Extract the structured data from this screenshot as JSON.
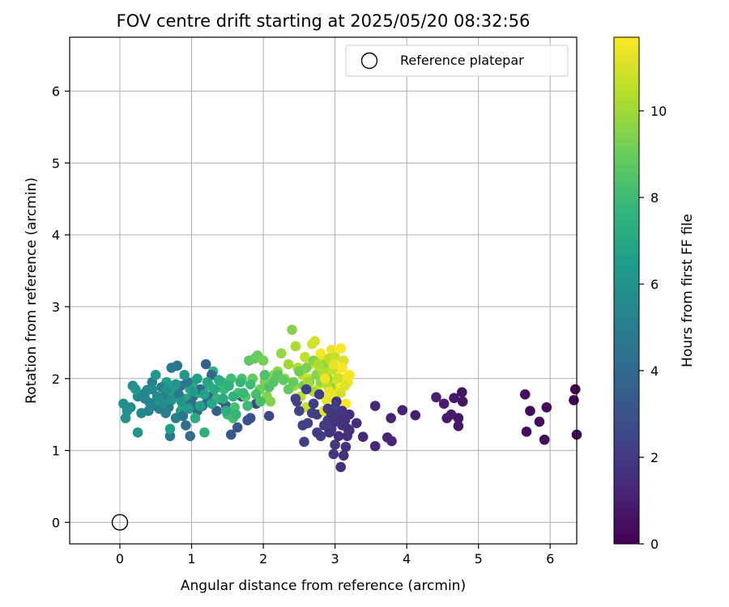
{
  "chart_data": {
    "type": "scatter",
    "title": "FOV centre drift starting at 2025/05/20 08:32:56",
    "xlabel": "Angular distance from reference (arcmin)",
    "ylabel": "Rotation from reference (arcmin)",
    "xlim": [
      -0.7,
      6.37
    ],
    "ylim": [
      -0.3,
      6.75
    ],
    "xticks": [
      0,
      1,
      2,
      3,
      4,
      5,
      6
    ],
    "yticks": [
      0,
      1,
      2,
      3,
      4,
      5,
      6
    ],
    "grid": true,
    "legend": {
      "position": "top-right",
      "entries": [
        "Reference platepar"
      ]
    },
    "reference_point": {
      "x": 0,
      "y": 0,
      "label": "Reference platepar"
    },
    "colorbar": {
      "label": "Hours from first FF file",
      "range": [
        0,
        11.7
      ],
      "ticks": [
        0,
        2,
        4,
        6,
        8,
        10
      ],
      "colormap": "viridis"
    },
    "points": [
      [
        6.35,
        1.85,
        0.0
      ],
      [
        6.33,
        1.7,
        0.05
      ],
      [
        6.37,
        1.22,
        0.1
      ],
      [
        5.95,
        1.6,
        0.2
      ],
      [
        5.92,
        1.15,
        0.25
      ],
      [
        5.85,
        1.4,
        0.3
      ],
      [
        5.72,
        1.55,
        0.35
      ],
      [
        5.67,
        1.26,
        0.4
      ],
      [
        5.65,
        1.78,
        0.45
      ],
      [
        4.77,
        1.81,
        0.6
      ],
      [
        4.78,
        1.68,
        0.65
      ],
      [
        4.72,
        1.45,
        0.7
      ],
      [
        4.72,
        1.34,
        0.75
      ],
      [
        4.66,
        1.73,
        0.8
      ],
      [
        4.62,
        1.5,
        0.85
      ],
      [
        4.56,
        1.45,
        0.9
      ],
      [
        4.52,
        1.65,
        0.95
      ],
      [
        4.41,
        1.74,
        1.0
      ],
      [
        4.12,
        1.49,
        1.05
      ],
      [
        3.94,
        1.56,
        1.1
      ],
      [
        3.78,
        1.45,
        1.15
      ],
      [
        3.79,
        1.13,
        1.2
      ],
      [
        3.73,
        1.18,
        1.25
      ],
      [
        3.56,
        1.62,
        1.3
      ],
      [
        3.56,
        1.06,
        1.35
      ],
      [
        3.39,
        1.19,
        1.4
      ],
      [
        3.3,
        1.38,
        1.45
      ],
      [
        3.2,
        1.5,
        1.5
      ],
      [
        3.17,
        1.2,
        1.55
      ],
      [
        3.15,
        1.05,
        1.6
      ],
      [
        3.12,
        0.93,
        1.65
      ],
      [
        3.08,
        0.77,
        1.7
      ],
      [
        3.1,
        1.35,
        1.75
      ],
      [
        3.05,
        1.48,
        1.8
      ],
      [
        3.0,
        1.08,
        1.85
      ],
      [
        2.98,
        0.95,
        1.9
      ],
      [
        2.95,
        1.3,
        1.95
      ],
      [
        2.9,
        1.42,
        2.0
      ],
      [
        2.85,
        1.55,
        2.05
      ],
      [
        2.8,
        1.2,
        2.1
      ],
      [
        2.75,
        1.5,
        2.15
      ],
      [
        2.62,
        1.38,
        2.2
      ],
      [
        2.55,
        1.35,
        2.25
      ],
      [
        2.57,
        1.12,
        2.3
      ],
      [
        2.47,
        1.68,
        2.35
      ],
      [
        3.0,
        1.6,
        2.4
      ],
      [
        3.1,
        1.45,
        1.5
      ],
      [
        3.18,
        1.3,
        1.58
      ],
      [
        2.92,
        1.25,
        1.78
      ],
      [
        3.05,
        1.2,
        1.62
      ],
      [
        2.08,
        1.48,
        2.6
      ],
      [
        1.9,
        1.65,
        2.7
      ],
      [
        1.82,
        1.45,
        2.8
      ],
      [
        1.78,
        1.42,
        2.9
      ],
      [
        1.7,
        1.75,
        3.0
      ],
      [
        1.64,
        1.32,
        3.1
      ],
      [
        1.55,
        1.22,
        3.2
      ],
      [
        1.48,
        1.62,
        3.3
      ],
      [
        1.42,
        1.7,
        3.4
      ],
      [
        1.35,
        1.55,
        3.5
      ],
      [
        1.25,
        1.75,
        3.6
      ],
      [
        1.2,
        2.2,
        3.7
      ],
      [
        1.15,
        1.62,
        3.8
      ],
      [
        1.08,
        1.55,
        3.9
      ],
      [
        1.02,
        1.75,
        4.0
      ],
      [
        0.98,
        1.2,
        4.1
      ],
      [
        0.92,
        1.35,
        4.2
      ],
      [
        0.88,
        1.62,
        4.3
      ],
      [
        0.85,
        1.9,
        4.4
      ],
      [
        0.8,
        2.18,
        4.5
      ],
      [
        0.72,
        2.15,
        4.6
      ],
      [
        0.7,
        1.2,
        4.7
      ],
      [
        0.68,
        1.6,
        4.8
      ],
      [
        0.62,
        1.75,
        4.9
      ],
      [
        0.55,
        1.58,
        5.0
      ],
      [
        0.5,
        1.62,
        5.1
      ],
      [
        0.45,
        1.95,
        5.2
      ],
      [
        0.35,
        1.8,
        5.3
      ],
      [
        0.3,
        1.52,
        5.4
      ],
      [
        0.25,
        1.75,
        5.5
      ],
      [
        0.18,
        1.9,
        5.6
      ],
      [
        0.15,
        1.6,
        5.7
      ],
      [
        0.08,
        1.45,
        5.8
      ],
      [
        0.05,
        1.65,
        5.9
      ],
      [
        0.1,
        1.55,
        6.0
      ],
      [
        0.25,
        1.25,
        6.1
      ],
      [
        0.22,
        1.85,
        6.2
      ],
      [
        0.5,
        2.05,
        6.3
      ],
      [
        0.55,
        1.7,
        6.4
      ],
      [
        0.65,
        1.95,
        6.5
      ],
      [
        0.7,
        1.3,
        6.6
      ],
      [
        0.75,
        1.8,
        6.7
      ],
      [
        0.85,
        1.55,
        6.8
      ],
      [
        0.92,
        1.72,
        6.9
      ],
      [
        0.98,
        1.85,
        7.0
      ],
      [
        1.02,
        1.95,
        7.1
      ],
      [
        1.05,
        1.45,
        7.2
      ],
      [
        1.1,
        1.8,
        7.3
      ],
      [
        1.18,
        1.25,
        7.4
      ],
      [
        1.25,
        1.9,
        7.5
      ],
      [
        1.3,
        2.1,
        7.6
      ],
      [
        1.35,
        1.72,
        7.7
      ],
      [
        1.42,
        1.95,
        7.8
      ],
      [
        1.45,
        1.85,
        7.9
      ],
      [
        1.5,
        1.5,
        8.0
      ],
      [
        1.55,
        2.0,
        8.1
      ],
      [
        1.58,
        1.45,
        8.2
      ],
      [
        1.6,
        1.6,
        8.3
      ],
      [
        1.65,
        1.8,
        8.4
      ],
      [
        1.7,
        2.0,
        8.5
      ],
      [
        1.75,
        1.75,
        8.6
      ],
      [
        1.8,
        2.25,
        8.7
      ],
      [
        1.85,
        2.0,
        8.8
      ],
      [
        1.88,
        2.28,
        8.9
      ],
      [
        1.92,
        2.32,
        9.0
      ],
      [
        1.95,
        1.85,
        9.1
      ],
      [
        2.0,
        2.25,
        9.2
      ],
      [
        2.02,
        1.95,
        9.3
      ],
      [
        2.05,
        1.75,
        9.4
      ],
      [
        2.1,
        1.68,
        9.5
      ],
      [
        2.15,
        2.05,
        9.6
      ],
      [
        2.2,
        2.1,
        9.7
      ],
      [
        2.25,
        2.35,
        9.8
      ],
      [
        2.3,
        2.0,
        9.9
      ],
      [
        2.35,
        2.2,
        10.0
      ],
      [
        2.4,
        2.68,
        9.5
      ],
      [
        2.43,
        1.9,
        10.1
      ],
      [
        2.45,
        2.45,
        10.2
      ],
      [
        2.48,
        2.15,
        10.3
      ],
      [
        2.52,
        1.75,
        10.4
      ],
      [
        2.55,
        2.05,
        10.5
      ],
      [
        2.58,
        2.3,
        10.6
      ],
      [
        2.6,
        1.6,
        10.7
      ],
      [
        2.62,
        2.0,
        10.8
      ],
      [
        2.65,
        2.2,
        10.9
      ],
      [
        2.68,
        2.48,
        10.95
      ],
      [
        2.72,
        2.52,
        11.0
      ],
      [
        2.75,
        1.85,
        11.1
      ],
      [
        2.78,
        2.12,
        11.15
      ],
      [
        2.82,
        2.3,
        11.2
      ],
      [
        2.85,
        1.55,
        11.25
      ],
      [
        2.88,
        1.7,
        11.3
      ],
      [
        2.9,
        2.15,
        11.35
      ],
      [
        2.95,
        2.4,
        11.4
      ],
      [
        2.98,
        1.95,
        11.45
      ],
      [
        3.0,
        1.75,
        11.5
      ],
      [
        3.02,
        2.1,
        11.55
      ],
      [
        3.05,
        1.85,
        11.6
      ],
      [
        3.08,
        2.42,
        11.65
      ],
      [
        3.12,
        2.0,
        11.68
      ],
      [
        3.15,
        1.65,
        11.7
      ],
      [
        3.18,
        1.95,
        11.5
      ],
      [
        3.2,
        2.05,
        11.6
      ],
      [
        0.35,
        1.72,
        5.3
      ],
      [
        0.38,
        1.84,
        5.35
      ],
      [
        0.42,
        1.66,
        5.25
      ],
      [
        0.58,
        1.88,
        5.15
      ],
      [
        0.64,
        1.52,
        5.05
      ],
      [
        0.78,
        1.45,
        4.95
      ],
      [
        0.82,
        1.78,
        4.75
      ],
      [
        0.88,
        1.48,
        4.65
      ],
      [
        0.94,
        1.95,
        4.55
      ],
      [
        1.0,
        1.65,
        4.25
      ],
      [
        1.12,
        1.85,
        4.15
      ],
      [
        1.22,
        1.68,
        3.95
      ],
      [
        1.28,
        2.05,
        3.85
      ],
      [
        0.4,
        1.55,
        5.45
      ],
      [
        0.45,
        1.85,
        5.55
      ],
      [
        0.52,
        1.75,
        5.65
      ],
      [
        0.6,
        1.65,
        5.75
      ],
      [
        0.66,
        1.85,
        5.85
      ],
      [
        0.72,
        1.7,
        5.95
      ],
      [
        0.78,
        1.92,
        6.05
      ],
      [
        0.86,
        1.68,
        6.15
      ],
      [
        0.9,
        2.05,
        6.25
      ],
      [
        0.96,
        1.58,
        6.35
      ],
      [
        1.02,
        1.82,
        6.45
      ],
      [
        1.08,
        2.0,
        6.55
      ],
      [
        1.12,
        1.62,
        6.65
      ],
      [
        1.18,
        1.78,
        6.75
      ],
      [
        1.22,
        1.95,
        6.85
      ],
      [
        1.28,
        1.65,
        6.95
      ],
      [
        1.32,
        1.85,
        7.05
      ],
      [
        1.38,
        1.98,
        7.15
      ],
      [
        1.44,
        1.72,
        7.25
      ],
      [
        1.48,
        1.55,
        7.35
      ],
      [
        1.52,
        1.9,
        7.45
      ],
      [
        1.58,
        1.75,
        7.55
      ],
      [
        1.62,
        1.5,
        7.65
      ],
      [
        1.68,
        1.95,
        7.75
      ],
      [
        1.72,
        1.8,
        7.85
      ],
      [
        1.78,
        1.62,
        7.95
      ],
      [
        1.82,
        1.92,
        8.05
      ],
      [
        1.9,
        1.78,
        8.15
      ],
      [
        1.96,
        1.68,
        8.25
      ],
      [
        2.02,
        2.05,
        8.35
      ],
      [
        2.08,
        1.88,
        8.45
      ],
      [
        2.14,
        1.95,
        8.55
      ],
      [
        2.2,
        2.05,
        8.65
      ],
      [
        2.28,
        1.98,
        8.75
      ],
      [
        2.35,
        1.85,
        8.85
      ],
      [
        2.42,
        1.95,
        8.95
      ],
      [
        2.5,
        2.1,
        9.05
      ],
      [
        2.56,
        1.9,
        9.15
      ],
      [
        2.6,
        2.15,
        9.25
      ],
      [
        2.64,
        1.95,
        9.35
      ],
      [
        2.7,
        2.25,
        9.45
      ],
      [
        2.74,
        2.05,
        9.55
      ],
      [
        2.8,
        1.95,
        9.65
      ],
      [
        2.86,
        2.2,
        9.75
      ],
      [
        2.9,
        2.0,
        9.85
      ],
      [
        2.94,
        1.88,
        9.95
      ],
      [
        2.62,
        1.95,
        10.05
      ],
      [
        2.7,
        1.82,
        10.15
      ],
      [
        2.76,
        2.2,
        10.25
      ],
      [
        2.84,
        2.08,
        10.35
      ],
      [
        2.88,
        1.92,
        10.45
      ],
      [
        2.92,
        2.28,
        10.55
      ],
      [
        2.96,
        2.12,
        10.65
      ],
      [
        3.0,
        2.3,
        10.75
      ],
      [
        3.04,
        2.0,
        10.85
      ],
      [
        3.08,
        1.8,
        10.9
      ],
      [
        3.12,
        2.25,
        11.05
      ],
      [
        3.14,
        1.9,
        11.12
      ],
      [
        2.98,
        2.2,
        11.22
      ],
      [
        2.92,
        1.82,
        11.32
      ],
      [
        2.86,
        2.0,
        11.42
      ],
      [
        2.8,
        2.35,
        11.52
      ],
      [
        3.1,
        2.15,
        11.62
      ],
      [
        2.45,
        1.72,
        2.4
      ],
      [
        2.5,
        1.55,
        2.5
      ],
      [
        2.6,
        1.85,
        2.3
      ],
      [
        2.7,
        1.65,
        2.2
      ],
      [
        2.78,
        1.78,
        2.1
      ],
      [
        2.9,
        1.58,
        2.0
      ],
      [
        3.02,
        1.68,
        1.9
      ],
      [
        3.1,
        1.55,
        1.8
      ],
      [
        3.14,
        1.42,
        1.7
      ],
      [
        3.2,
        1.28,
        1.6
      ],
      [
        3.0,
        1.4,
        1.75
      ],
      [
        2.95,
        1.5,
        1.85
      ],
      [
        2.85,
        1.35,
        1.95
      ],
      [
        2.75,
        1.25,
        2.05
      ],
      [
        2.68,
        1.52,
        2.15
      ]
    ]
  }
}
